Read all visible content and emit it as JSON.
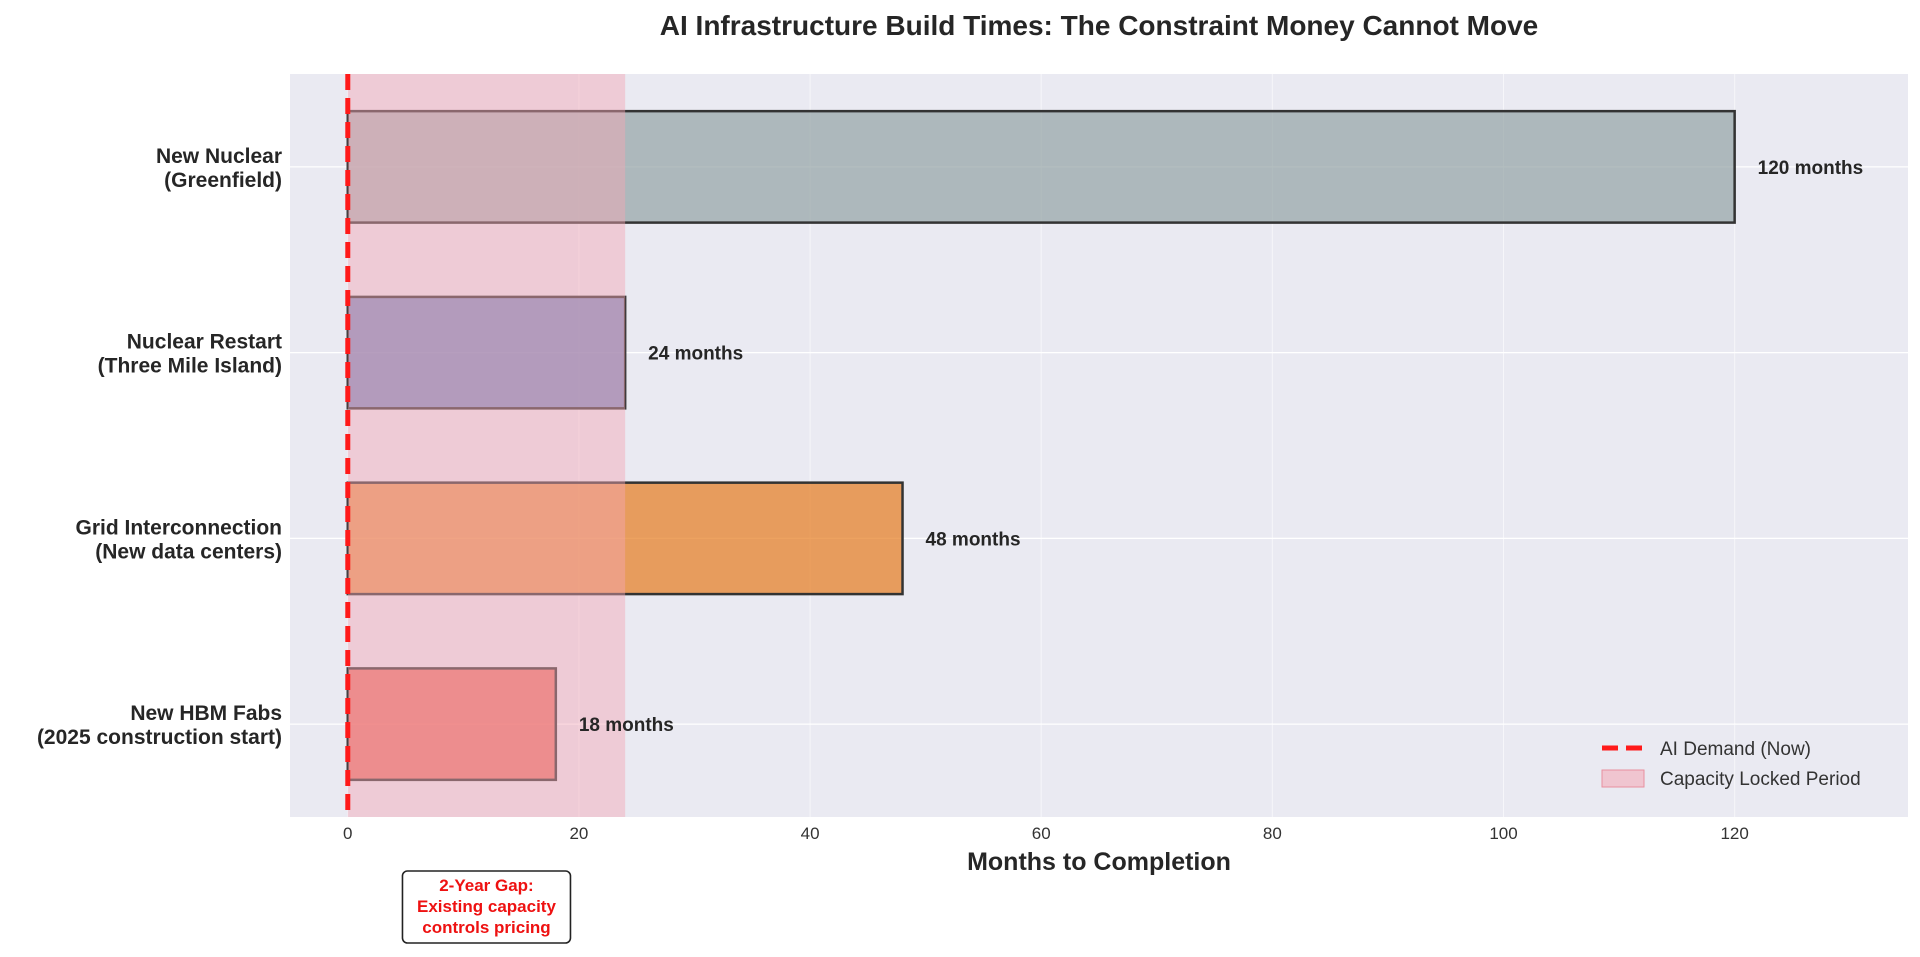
{
  "chart_data": {
    "type": "bar",
    "orientation": "horizontal",
    "title": "AI Infrastructure Build Times: The Constraint Money Cannot Move",
    "xlabel": "Months to Completion",
    "ylabel": "",
    "xlim": [
      -5,
      135
    ],
    "xticks": [
      0,
      20,
      40,
      60,
      80,
      100,
      120
    ],
    "grid": true,
    "categories": [
      [
        "New Nuclear",
        "(Greenfield)"
      ],
      [
        "Nuclear Restart",
        "(Three Mile Island)"
      ],
      [
        "Grid Interconnection",
        "(New data centers)"
      ],
      [
        "New HBM Fabs",
        "(2025 construction start)"
      ]
    ],
    "values": [
      120,
      24,
      48,
      18
    ],
    "value_labels": [
      "120 months",
      "24 months",
      "48 months",
      "18 months"
    ],
    "bar_colors": [
      "#95a5a6",
      "#5470b0",
      "#e67e22",
      "#e74c3c"
    ],
    "reference_line": {
      "x": 0,
      "color": "#ff1a1a",
      "style": "dashed",
      "legend": "AI Demand (Now)"
    },
    "shaded_region": {
      "x_range": [
        0,
        24
      ],
      "color": "#f4a6b4",
      "legend": "Capacity Locked Period"
    },
    "annotation": {
      "lines": [
        "2-Year Gap:",
        "Existing capacity",
        "controls pricing"
      ],
      "color": "#ee1111"
    },
    "legend_position": "lower-right",
    "plot_background": "#eaeaf2"
  }
}
